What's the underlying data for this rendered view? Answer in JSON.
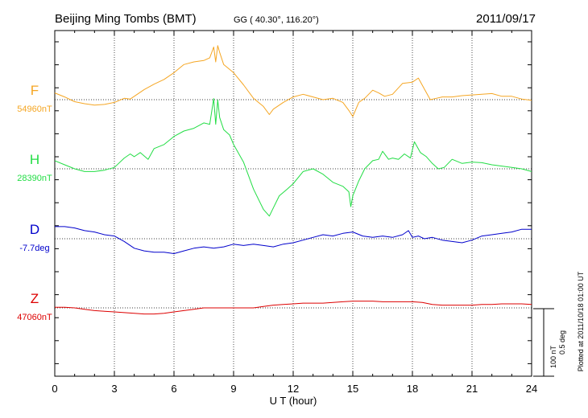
{
  "header": {
    "station": "Beijing Ming Tombs (BMT)",
    "coords": "GG ( 40.30°, 116.20°)",
    "date": "2011/09/17"
  },
  "footer": {
    "plotted_at": "Plotted at 2011/10/18 01:00 UT"
  },
  "scale": {
    "nt": "100 nT",
    "deg": "0.5 deg"
  },
  "chart_data": {
    "type": "line",
    "title": "Beijing Ming Tombs (BMT)",
    "xlabel": "U T (hour)",
    "ylabel": "",
    "xlim": [
      0,
      24
    ],
    "xticks": [
      "0",
      "3",
      "6",
      "9",
      "12",
      "15",
      "18",
      "21",
      "24"
    ],
    "grid": true,
    "series": [
      {
        "name": "F",
        "baseline_label": "54960nT",
        "color": "#f5a623",
        "offset_unit": "nT",
        "x": [
          0,
          0.5,
          1,
          1.5,
          2,
          2.5,
          3,
          3.5,
          3.8,
          4,
          4.5,
          5,
          5.5,
          6,
          6.5,
          7,
          7.5,
          7.8,
          8,
          8.1,
          8.2,
          8.3,
          8.5,
          9,
          9.5,
          10,
          10.5,
          10.8,
          11,
          11.5,
          12,
          12.5,
          13,
          13.5,
          14,
          14.5,
          14.8,
          15,
          15.3,
          15.6,
          16,
          16.3,
          16.6,
          17,
          17.5,
          18,
          18.3,
          18.6,
          18.9,
          19.2,
          19.5,
          20,
          20.5,
          21,
          21.5,
          22,
          22.5,
          23,
          23.5,
          24
        ],
        "values": [
          10,
          4,
          -3,
          -6,
          -8,
          -7,
          -4,
          2,
          1,
          5,
          15,
          23,
          30,
          40,
          52,
          56,
          58,
          62,
          78,
          56,
          80,
          70,
          52,
          40,
          22,
          2,
          -10,
          -22,
          -14,
          -4,
          4,
          8,
          4,
          0,
          2,
          -4,
          -16,
          -25,
          -4,
          2,
          14,
          10,
          5,
          8,
          24,
          26,
          32,
          16,
          0,
          2,
          4,
          4,
          6,
          7,
          8,
          9,
          5,
          5,
          1,
          -1
        ]
      },
      {
        "name": "H",
        "baseline_label": "28390nT",
        "color": "#22dd44",
        "offset_unit": "nT",
        "x": [
          0,
          0.5,
          1,
          1.5,
          2,
          2.5,
          3,
          3.5,
          3.8,
          4,
          4.3,
          4.7,
          5,
          5.5,
          6,
          6.5,
          7,
          7.5,
          7.8,
          8,
          8.1,
          8.2,
          8.3,
          8.5,
          8.8,
          9,
          9.5,
          10,
          10.5,
          10.8,
          11,
          11.3,
          11.7,
          12,
          12.5,
          13,
          13.5,
          14,
          14.5,
          14.8,
          14.9,
          15,
          15.3,
          15.6,
          16,
          16.3,
          16.5,
          16.8,
          17,
          17.3,
          17.6,
          17.9,
          18.1,
          18.4,
          18.7,
          19,
          19.3,
          19.6,
          20,
          20.5,
          21,
          21.5,
          22,
          22.5,
          23,
          23.5,
          24
        ],
        "values": [
          12,
          6,
          0,
          -4,
          -4,
          -2,
          2,
          16,
          22,
          18,
          24,
          14,
          30,
          36,
          48,
          56,
          60,
          68,
          66,
          104,
          66,
          102,
          76,
          58,
          50,
          36,
          10,
          -30,
          -60,
          -70,
          -58,
          -40,
          -30,
          -22,
          -4,
          0,
          -8,
          -20,
          -26,
          -34,
          -56,
          -40,
          -18,
          0,
          12,
          14,
          26,
          14,
          16,
          14,
          22,
          16,
          40,
          24,
          18,
          8,
          0,
          2,
          14,
          8,
          10,
          9,
          6,
          4,
          2,
          0,
          -4
        ]
      },
      {
        "name": "D",
        "baseline_label": "-7.7deg",
        "color": "#0000cc",
        "offset_unit": "deg",
        "x": [
          0,
          0.5,
          1,
          1.5,
          2,
          2.5,
          3,
          3.5,
          4,
          4.5,
          5,
          5.5,
          6,
          6.5,
          7,
          7.5,
          8,
          8.5,
          9,
          9.5,
          10,
          10.5,
          11,
          11.5,
          12,
          12.5,
          13,
          13.5,
          14,
          14.5,
          15,
          15.5,
          16,
          16.5,
          17,
          17.5,
          17.8,
          18,
          18.3,
          18.6,
          19,
          19.5,
          20,
          20.5,
          21,
          21.5,
          22,
          22.5,
          23,
          23.5,
          24
        ],
        "values": [
          0.09,
          0.09,
          0.08,
          0.06,
          0.05,
          0.03,
          0.02,
          -0.02,
          -0.07,
          -0.09,
          -0.1,
          -0.1,
          -0.11,
          -0.09,
          -0.07,
          -0.06,
          -0.07,
          -0.06,
          -0.04,
          -0.05,
          -0.04,
          -0.05,
          -0.06,
          -0.04,
          -0.03,
          -0.01,
          0.01,
          0.03,
          0.02,
          0.04,
          0.05,
          0.02,
          0.01,
          0.02,
          0.01,
          0.03,
          0.06,
          0.01,
          0.02,
          0.0,
          0.01,
          -0.01,
          -0.02,
          -0.03,
          -0.01,
          0.02,
          0.03,
          0.04,
          0.05,
          0.07,
          0.07
        ]
      },
      {
        "name": "Z",
        "baseline_label": "47060nT",
        "color": "#dd0000",
        "offset_unit": "nT",
        "x": [
          0,
          0.5,
          1,
          1.5,
          2,
          2.5,
          3,
          3.5,
          4,
          4.5,
          5,
          5.5,
          6,
          6.5,
          7,
          7.5,
          8,
          8.5,
          9,
          9.5,
          10,
          10.5,
          11,
          11.5,
          12,
          12.5,
          13,
          13.5,
          14,
          14.5,
          15,
          15.5,
          16,
          16.5,
          17,
          17.5,
          18,
          18.5,
          19,
          19.5,
          20,
          20.5,
          21,
          21.5,
          22,
          22.5,
          23,
          23.5,
          24
        ],
        "values": [
          1,
          1,
          0,
          -2,
          -4,
          -5,
          -6,
          -7,
          -8,
          -9,
          -9,
          -8,
          -6,
          -4,
          -2,
          0,
          0,
          0,
          0,
          0,
          0,
          2,
          4,
          5,
          6,
          7,
          7,
          7,
          8,
          9,
          10,
          10,
          10,
          9,
          9,
          9,
          9,
          8,
          5,
          4,
          4,
          4,
          4,
          5,
          5,
          6,
          6,
          6,
          5
        ]
      }
    ]
  }
}
